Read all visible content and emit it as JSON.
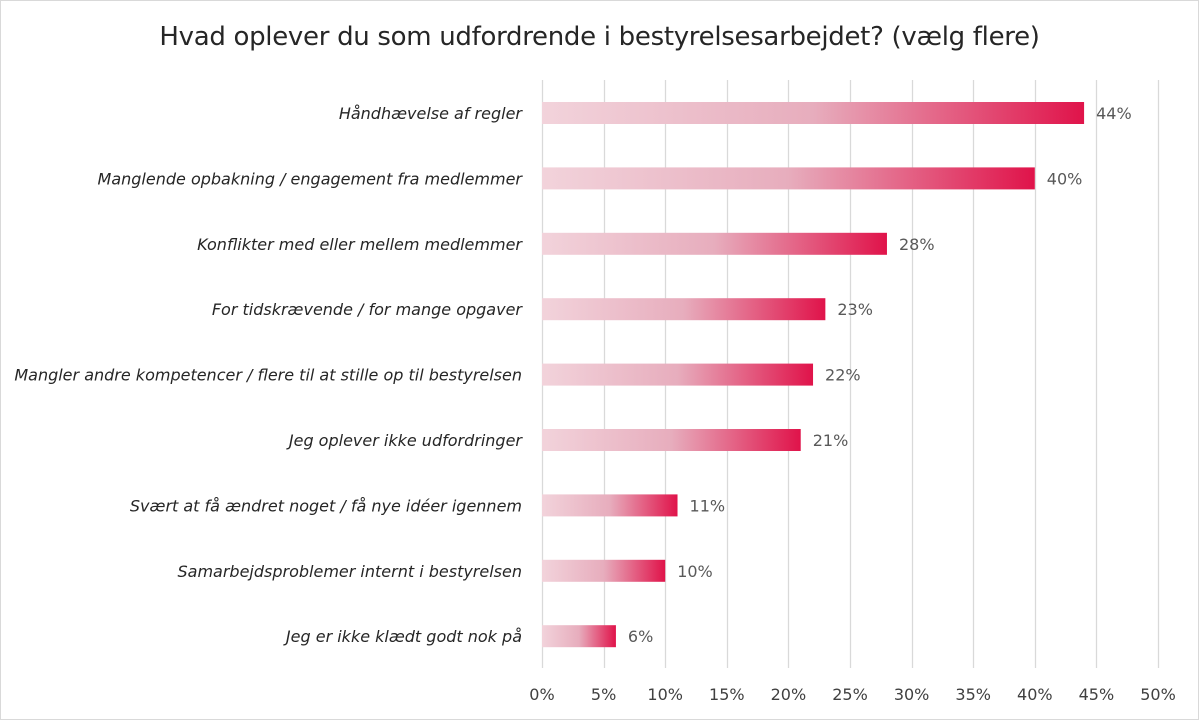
{
  "chart_data": {
    "type": "bar",
    "orientation": "horizontal",
    "title": "Hvad oplever du som udfordrende i bestyrelsesarbejdet? (vælg flere)",
    "xlabel": "",
    "ylabel": "",
    "categories": [
      "Håndhævelse af regler",
      "Manglende opbakning / engagement fra medlemmer",
      "Konflikter med eller mellem medlemmer",
      "For tidskrævende / for mange opgaver",
      "Mangler andre kompetencer / flere til at stille op til bestyrelsen",
      "Jeg oplever ikke udfordringer",
      "Svært at få ændret noget / få nye idéer igennem",
      "Samarbejdsproblemer internt i bestyrelsen",
      "Jeg er ikke klædt godt nok på"
    ],
    "values": [
      44,
      40,
      28,
      23,
      22,
      21,
      11,
      10,
      6
    ],
    "value_labels": [
      "44%",
      "40%",
      "28%",
      "23%",
      "22%",
      "21%",
      "11%",
      "10%",
      "6%"
    ],
    "xlim": [
      0,
      50
    ],
    "x_ticks": [
      0,
      5,
      10,
      15,
      20,
      25,
      30,
      35,
      40,
      45,
      50
    ],
    "x_tick_labels": [
      "0%",
      "5%",
      "10%",
      "15%",
      "20%",
      "25%",
      "30%",
      "35%",
      "40%",
      "45%",
      "50%"
    ],
    "grid": "vertical",
    "legend": "none",
    "colors": {
      "bar_gradient_start": "#f2d3db",
      "bar_gradient_end": "#e0134a",
      "gridline": "#d9d9d9"
    }
  }
}
